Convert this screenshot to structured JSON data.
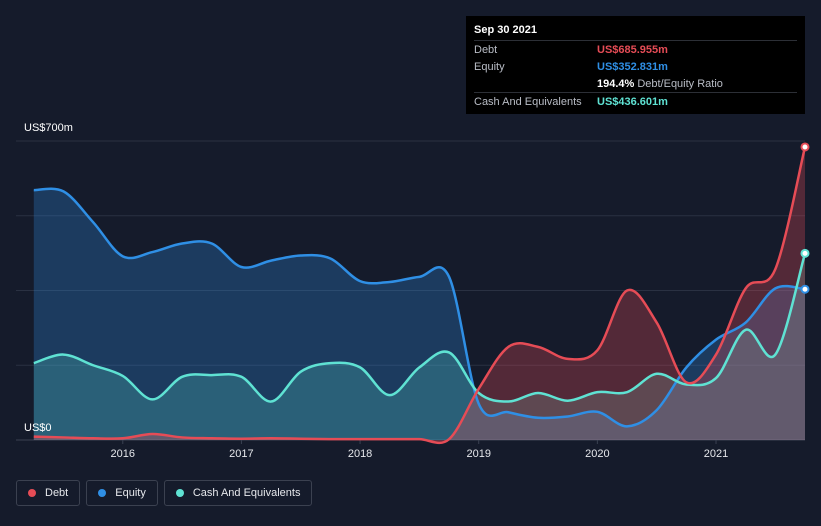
{
  "tooltip": {
    "date": "Sep 30 2021",
    "rows": [
      {
        "name": "Debt",
        "value": "US$685.955m",
        "color": "#e64c56"
      },
      {
        "name": "Equity",
        "value": "US$352.831m",
        "color": "#2f8fe5"
      },
      {
        "name": "",
        "value": "194.4%",
        "sub": "Debt/Equity Ratio",
        "color": "#ffffff"
      },
      {
        "name": "Cash And Equivalents",
        "value": "US$436.601m",
        "color": "#5fe2d3"
      }
    ]
  },
  "legend": [
    {
      "label": "Debt",
      "color": "#e64c56"
    },
    {
      "label": "Equity",
      "color": "#2f8fe5"
    },
    {
      "label": "Cash And Equivalents",
      "color": "#5fe2d3"
    }
  ],
  "chart_data": {
    "type": "area",
    "ylabel_top": "US$700m",
    "ylabel_bottom": "US$0",
    "ylim": [
      0,
      700
    ],
    "xlim": [
      2015.1,
      2021.75
    ],
    "x_ticks": [
      "2016",
      "2017",
      "2018",
      "2019",
      "2020",
      "2021"
    ],
    "grid": true,
    "legend_position": "bottom-left",
    "series": [
      {
        "name": "Equity",
        "color": "#2f8fe5",
        "points": [
          [
            2015.25,
            585
          ],
          [
            2015.5,
            582
          ],
          [
            2015.75,
            510
          ],
          [
            2016.0,
            430
          ],
          [
            2016.25,
            440
          ],
          [
            2016.5,
            460
          ],
          [
            2016.75,
            460
          ],
          [
            2017.0,
            405
          ],
          [
            2017.25,
            420
          ],
          [
            2017.5,
            432
          ],
          [
            2017.75,
            425
          ],
          [
            2018.0,
            372
          ],
          [
            2018.25,
            370
          ],
          [
            2018.5,
            382
          ],
          [
            2018.75,
            382
          ],
          [
            2019.0,
            85
          ],
          [
            2019.25,
            65
          ],
          [
            2019.5,
            52
          ],
          [
            2019.75,
            55
          ],
          [
            2020.0,
            66
          ],
          [
            2020.25,
            32
          ],
          [
            2020.5,
            70
          ],
          [
            2020.75,
            170
          ],
          [
            2021.0,
            235
          ],
          [
            2021.25,
            275
          ],
          [
            2021.5,
            355
          ],
          [
            2021.75,
            353
          ]
        ]
      },
      {
        "name": "Cash And Equivalents",
        "color": "#5fe2d3",
        "points": [
          [
            2015.25,
            180
          ],
          [
            2015.5,
            200
          ],
          [
            2015.75,
            175
          ],
          [
            2016.0,
            150
          ],
          [
            2016.25,
            95
          ],
          [
            2016.5,
            148
          ],
          [
            2016.75,
            152
          ],
          [
            2017.0,
            148
          ],
          [
            2017.25,
            90
          ],
          [
            2017.5,
            160
          ],
          [
            2017.75,
            180
          ],
          [
            2018.0,
            170
          ],
          [
            2018.25,
            105
          ],
          [
            2018.5,
            170
          ],
          [
            2018.75,
            205
          ],
          [
            2019.0,
            110
          ],
          [
            2019.25,
            90
          ],
          [
            2019.5,
            110
          ],
          [
            2019.75,
            92
          ],
          [
            2020.0,
            112
          ],
          [
            2020.25,
            112
          ],
          [
            2020.5,
            155
          ],
          [
            2020.75,
            130
          ],
          [
            2021.0,
            145
          ],
          [
            2021.25,
            258
          ],
          [
            2021.5,
            200
          ],
          [
            2021.75,
            437
          ]
        ]
      },
      {
        "name": "Debt",
        "color": "#e64c56",
        "points": [
          [
            2015.25,
            8
          ],
          [
            2015.5,
            6
          ],
          [
            2015.75,
            4
          ],
          [
            2016.0,
            4
          ],
          [
            2016.25,
            14
          ],
          [
            2016.5,
            6
          ],
          [
            2016.75,
            4
          ],
          [
            2017.0,
            3
          ],
          [
            2017.25,
            4
          ],
          [
            2017.5,
            3
          ],
          [
            2017.75,
            2
          ],
          [
            2018.0,
            2
          ],
          [
            2018.25,
            2
          ],
          [
            2018.5,
            2
          ],
          [
            2018.75,
            2
          ],
          [
            2019.0,
            120
          ],
          [
            2019.25,
            218
          ],
          [
            2019.5,
            218
          ],
          [
            2019.75,
            190
          ],
          [
            2020.0,
            210
          ],
          [
            2020.25,
            350
          ],
          [
            2020.5,
            275
          ],
          [
            2020.75,
            135
          ],
          [
            2021.0,
            200
          ],
          [
            2021.25,
            355
          ],
          [
            2021.5,
            400
          ],
          [
            2021.75,
            686
          ]
        ]
      }
    ]
  }
}
